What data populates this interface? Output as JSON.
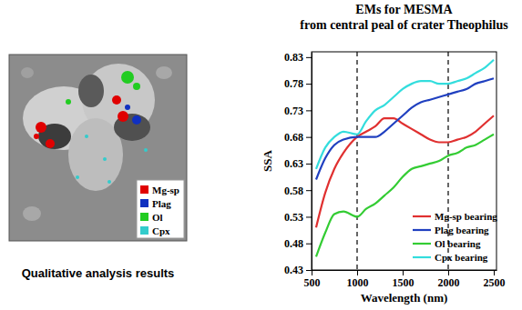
{
  "image_panel": {
    "caption": "Qualitative analysis results",
    "classes": [
      {
        "name": "Mg-sp",
        "color": "#e00000"
      },
      {
        "name": "Plag",
        "color": "#1030c0"
      },
      {
        "name": "Ol",
        "color": "#22cc22"
      },
      {
        "name": "Cpx",
        "color": "#33cccc"
      }
    ]
  },
  "chart_data": {
    "type": "line",
    "title": [
      "EMs for MESMA",
      "from central peal of crater Theophilus"
    ],
    "x_label": "Wavelength (nm)",
    "y_label": "SSA",
    "x": [
      550,
      650,
      750,
      850,
      1000,
      1100,
      1200,
      1300,
      1400,
      1500,
      1600,
      1700,
      1800,
      1900,
      2000,
      2100,
      2200,
      2300,
      2400,
      2500
    ],
    "series": [
      {
        "name": "Mg-sp bearing",
        "color": "#e03030",
        "values": [
          0.51,
          0.575,
          0.62,
          0.65,
          0.68,
          0.69,
          0.7,
          0.715,
          0.715,
          0.705,
          0.695,
          0.685,
          0.675,
          0.67,
          0.67,
          0.675,
          0.68,
          0.69,
          0.705,
          0.72
        ]
      },
      {
        "name": "Plag bearing",
        "color": "#2040c0",
        "values": [
          0.6,
          0.64,
          0.665,
          0.675,
          0.68,
          0.68,
          0.68,
          0.69,
          0.705,
          0.72,
          0.735,
          0.745,
          0.75,
          0.755,
          0.76,
          0.765,
          0.77,
          0.78,
          0.785,
          0.79
        ]
      },
      {
        "name": "Ol bearing",
        "color": "#33cc33",
        "values": [
          0.455,
          0.5,
          0.535,
          0.54,
          0.53,
          0.545,
          0.555,
          0.57,
          0.585,
          0.605,
          0.62,
          0.625,
          0.63,
          0.635,
          0.645,
          0.65,
          0.66,
          0.665,
          0.675,
          0.685
        ]
      },
      {
        "name": "Cpx bearing",
        "color": "#33dddd",
        "values": [
          0.62,
          0.66,
          0.68,
          0.69,
          0.685,
          0.71,
          0.73,
          0.74,
          0.755,
          0.77,
          0.78,
          0.785,
          0.785,
          0.78,
          0.78,
          0.785,
          0.79,
          0.8,
          0.81,
          0.825
        ]
      }
    ],
    "vlines": [
      1000,
      2000
    ],
    "xlim": [
      500,
      2530
    ],
    "xticks": [
      500,
      1000,
      1500,
      2000,
      2500
    ],
    "ylim": [
      0.43,
      0.84
    ],
    "yticks": [
      0.43,
      0.48,
      0.53,
      0.58,
      0.63,
      0.68,
      0.73,
      0.78,
      0.83
    ],
    "grid": false,
    "legend": "bottom-right"
  }
}
